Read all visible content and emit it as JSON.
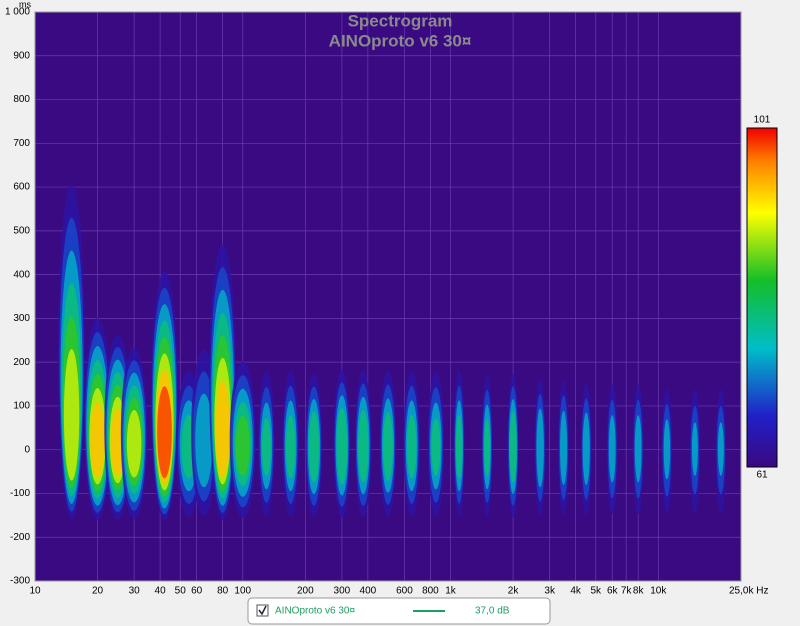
{
  "chart_data": {
    "type": "spectrogram",
    "title": "Spectrogram",
    "subtitle": "AINOproto v6 30¤",
    "y_unit": "ms",
    "log_x": true,
    "grid": true,
    "background": "#3a0a82",
    "xlim": [
      10,
      25000
    ],
    "ylim": [
      -300,
      1000
    ],
    "xticks": [
      10,
      20,
      30,
      40,
      50,
      60,
      80,
      100,
      200,
      300,
      400,
      600,
      800,
      {
        "value": 1000,
        "label": "1k"
      },
      {
        "value": 2000,
        "label": "2k"
      },
      {
        "value": 3000,
        "label": "3k"
      },
      {
        "value": 4000,
        "label": "4k"
      },
      {
        "value": 5000,
        "label": "5k"
      },
      {
        "value": 6000,
        "label": "6k"
      },
      {
        "value": 7000,
        "label": "7k"
      },
      {
        "value": 8000,
        "label": "8k"
      },
      {
        "value": 10000,
        "label": "10k"
      },
      {
        "value": 25000,
        "label": "25,0k Hz"
      }
    ],
    "yticks": [
      -300,
      -200,
      -100,
      0,
      100,
      200,
      300,
      400,
      500,
      600,
      700,
      800,
      900,
      {
        "value": 1000,
        "label": "1 000"
      }
    ],
    "colorbar": {
      "lim": [
        61,
        101
      ],
      "ticks": [
        61,
        101
      ]
    },
    "series": [
      {
        "name": "AINOproto v6 30¤",
        "color": "#19a060",
        "x": [
          15,
          20,
          25,
          30,
          42,
          55,
          65,
          80,
          100,
          130,
          170,
          220,
          300,
          380,
          500,
          650,
          850,
          1100,
          1500,
          2000,
          2700,
          3500,
          4500,
          6000,
          8000,
          11000,
          15000,
          20000
        ],
        "values": [
          92,
          95,
          94,
          90,
          101,
          80,
          78,
          95,
          84,
          79,
          80,
          82,
          83,
          82,
          81,
          80,
          79,
          80,
          79,
          82,
          78,
          77,
          77,
          76,
          76,
          75,
          74,
          74
        ],
        "extent": [
          650,
          320,
          280,
          250,
          430,
          200,
          260,
          500,
          220,
          200,
          200,
          190,
          200,
          200,
          200,
          200,
          200,
          200,
          190,
          190,
          180,
          180,
          170,
          170,
          170,
          160,
          160,
          160
        ]
      }
    ],
    "legend_value": "37,0 dB"
  }
}
